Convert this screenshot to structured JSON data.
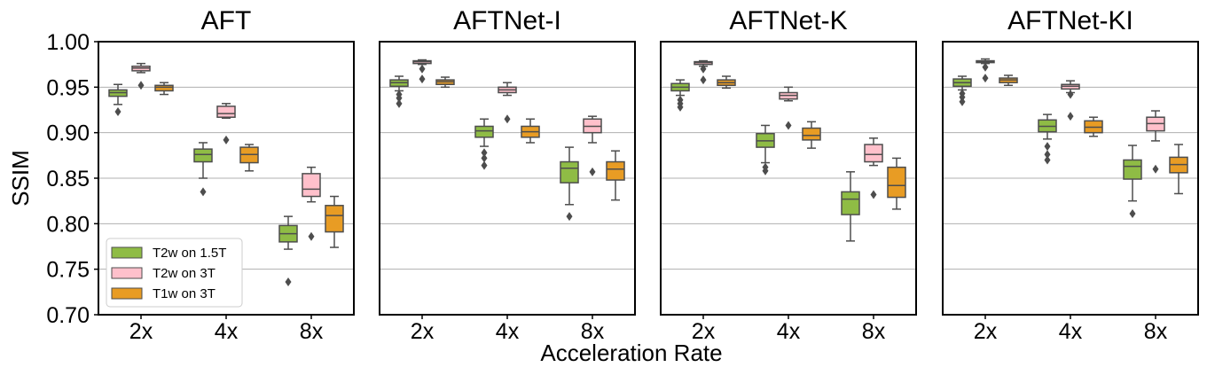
{
  "chart_data": {
    "type": "box",
    "ylabel": "SSIM",
    "xlabel": "Acceleration Rate",
    "ylim": [
      0.7,
      1.0
    ],
    "yticks": [
      "0.70",
      "0.75",
      "0.80",
      "0.85",
      "0.90",
      "0.95",
      "1.00"
    ],
    "categories": [
      "2x",
      "4x",
      "8x"
    ],
    "grid": "horizontal",
    "legend_position": "lower-left, first panel",
    "legend": [
      {
        "name": "T2w on 1.5T",
        "color": "#8fbc45"
      },
      {
        "name": "T2w on 3T",
        "color": "#ffc0cb"
      },
      {
        "name": "T1w on 3T",
        "color": "#e89c24"
      }
    ],
    "panels": [
      {
        "title": "AFT",
        "series": [
          {
            "name": "T2w on 1.5T",
            "boxes": [
              {
                "whislo": 0.931,
                "q1": 0.94,
                "med": 0.944,
                "q3": 0.947,
                "whishi": 0.953,
                "fliers": [
                  0.923
                ]
              },
              {
                "whislo": 0.85,
                "q1": 0.868,
                "med": 0.876,
                "q3": 0.882,
                "whishi": 0.889,
                "fliers": [
                  0.835
                ]
              },
              {
                "whislo": 0.772,
                "q1": 0.78,
                "med": 0.789,
                "q3": 0.798,
                "whishi": 0.808,
                "fliers": [
                  0.736
                ]
              }
            ]
          },
          {
            "name": "T2w on 3T",
            "boxes": [
              {
                "whislo": 0.966,
                "q1": 0.968,
                "med": 0.971,
                "q3": 0.973,
                "whishi": 0.976,
                "fliers": [
                  0.952
                ]
              },
              {
                "whislo": 0.916,
                "q1": 0.917,
                "med": 0.921,
                "q3": 0.929,
                "whishi": 0.932,
                "fliers": [
                  0.892
                ]
              },
              {
                "whislo": 0.824,
                "q1": 0.83,
                "med": 0.838,
                "q3": 0.855,
                "whishi": 0.862,
                "fliers": [
                  0.786
                ]
              }
            ]
          },
          {
            "name": "T1w on 3T",
            "boxes": [
              {
                "whislo": 0.942,
                "q1": 0.946,
                "med": 0.95,
                "q3": 0.952,
                "whishi": 0.955,
                "fliers": []
              },
              {
                "whislo": 0.858,
                "q1": 0.867,
                "med": 0.876,
                "q3": 0.884,
                "whishi": 0.887,
                "fliers": []
              },
              {
                "whislo": 0.774,
                "q1": 0.791,
                "med": 0.809,
                "q3": 0.82,
                "whishi": 0.83,
                "fliers": []
              }
            ]
          }
        ]
      },
      {
        "title": "AFTNet-I",
        "series": [
          {
            "name": "T2w on 1.5T",
            "boxes": [
              {
                "whislo": 0.946,
                "q1": 0.951,
                "med": 0.955,
                "q3": 0.958,
                "whishi": 0.962,
                "fliers": [
                  0.942,
                  0.938,
                  0.932
                ]
              },
              {
                "whislo": 0.885,
                "q1": 0.895,
                "med": 0.902,
                "q3": 0.907,
                "whishi": 0.915,
                "fliers": [
                  0.878,
                  0.872,
                  0.864
                ]
              },
              {
                "whislo": 0.821,
                "q1": 0.845,
                "med": 0.861,
                "q3": 0.868,
                "whishi": 0.884,
                "fliers": [
                  0.808
                ]
              }
            ]
          },
          {
            "name": "T2w on 3T",
            "boxes": [
              {
                "whislo": 0.975,
                "q1": 0.976,
                "med": 0.978,
                "q3": 0.979,
                "whishi": 0.98,
                "fliers": [
                  0.97,
                  0.959
                ]
              },
              {
                "whislo": 0.941,
                "q1": 0.944,
                "med": 0.947,
                "q3": 0.95,
                "whishi": 0.955,
                "fliers": [
                  0.915
                ]
              },
              {
                "whislo": 0.889,
                "q1": 0.9,
                "med": 0.907,
                "q3": 0.915,
                "whishi": 0.918,
                "fliers": [
                  0.857
                ]
              }
            ]
          },
          {
            "name": "T1w on 3T",
            "boxes": [
              {
                "whislo": 0.95,
                "q1": 0.953,
                "med": 0.956,
                "q3": 0.958,
                "whishi": 0.961,
                "fliers": []
              },
              {
                "whislo": 0.889,
                "q1": 0.895,
                "med": 0.901,
                "q3": 0.907,
                "whishi": 0.915,
                "fliers": []
              },
              {
                "whislo": 0.826,
                "q1": 0.848,
                "med": 0.86,
                "q3": 0.868,
                "whishi": 0.88,
                "fliers": []
              }
            ]
          }
        ]
      },
      {
        "title": "AFTNet-K",
        "series": [
          {
            "name": "T2w on 1.5T",
            "boxes": [
              {
                "whislo": 0.941,
                "q1": 0.946,
                "med": 0.95,
                "q3": 0.954,
                "whishi": 0.958,
                "fliers": [
                  0.936,
                  0.932,
                  0.928
                ]
              },
              {
                "whislo": 0.867,
                "q1": 0.884,
                "med": 0.891,
                "q3": 0.899,
                "whishi": 0.908,
                "fliers": [
                  0.862,
                  0.858
                ]
              },
              {
                "whislo": 0.781,
                "q1": 0.81,
                "med": 0.827,
                "q3": 0.835,
                "whishi": 0.857,
                "fliers": []
              }
            ]
          },
          {
            "name": "T2w on 3T",
            "boxes": [
              {
                "whislo": 0.973,
                "q1": 0.975,
                "med": 0.977,
                "q3": 0.978,
                "whishi": 0.979,
                "fliers": [
                  0.97,
                  0.958
                ]
              },
              {
                "whislo": 0.935,
                "q1": 0.937,
                "med": 0.941,
                "q3": 0.944,
                "whishi": 0.95,
                "fliers": [
                  0.908
                ]
              },
              {
                "whislo": 0.864,
                "q1": 0.868,
                "med": 0.876,
                "q3": 0.887,
                "whishi": 0.894,
                "fliers": [
                  0.832
                ]
              }
            ]
          },
          {
            "name": "T1w on 3T",
            "boxes": [
              {
                "whislo": 0.949,
                "q1": 0.952,
                "med": 0.955,
                "q3": 0.958,
                "whishi": 0.962,
                "fliers": []
              },
              {
                "whislo": 0.883,
                "q1": 0.892,
                "med": 0.897,
                "q3": 0.905,
                "whishi": 0.912,
                "fliers": []
              },
              {
                "whislo": 0.816,
                "q1": 0.829,
                "med": 0.842,
                "q3": 0.862,
                "whishi": 0.872,
                "fliers": []
              }
            ]
          }
        ]
      },
      {
        "title": "AFTNet-KI",
        "series": [
          {
            "name": "T2w on 1.5T",
            "boxes": [
              {
                "whislo": 0.947,
                "q1": 0.951,
                "med": 0.955,
                "q3": 0.959,
                "whishi": 0.962,
                "fliers": [
                  0.943,
                  0.939,
                  0.934
                ]
              },
              {
                "whislo": 0.893,
                "q1": 0.901,
                "med": 0.907,
                "q3": 0.914,
                "whishi": 0.92,
                "fliers": [
                  0.885,
                  0.876,
                  0.87
                ]
              },
              {
                "whislo": 0.825,
                "q1": 0.849,
                "med": 0.863,
                "q3": 0.87,
                "whishi": 0.886,
                "fliers": [
                  0.811
                ]
              }
            ]
          },
          {
            "name": "T2w on 3T",
            "boxes": [
              {
                "whislo": 0.976,
                "q1": 0.977,
                "med": 0.978,
                "q3": 0.979,
                "whishi": 0.981,
                "fliers": [
                  0.972,
                  0.96
                ]
              },
              {
                "whislo": 0.944,
                "q1": 0.948,
                "med": 0.951,
                "q3": 0.953,
                "whishi": 0.957,
                "fliers": [
                  0.942,
                  0.918
                ]
              },
              {
                "whislo": 0.891,
                "q1": 0.902,
                "med": 0.91,
                "q3": 0.917,
                "whishi": 0.924,
                "fliers": [
                  0.86
                ]
              }
            ]
          },
          {
            "name": "T1w on 3T",
            "boxes": [
              {
                "whislo": 0.952,
                "q1": 0.955,
                "med": 0.958,
                "q3": 0.96,
                "whishi": 0.963,
                "fliers": []
              },
              {
                "whislo": 0.896,
                "q1": 0.9,
                "med": 0.906,
                "q3": 0.913,
                "whishi": 0.917,
                "fliers": []
              },
              {
                "whislo": 0.833,
                "q1": 0.856,
                "med": 0.865,
                "q3": 0.873,
                "whishi": 0.887,
                "fliers": []
              }
            ]
          }
        ]
      }
    ]
  }
}
